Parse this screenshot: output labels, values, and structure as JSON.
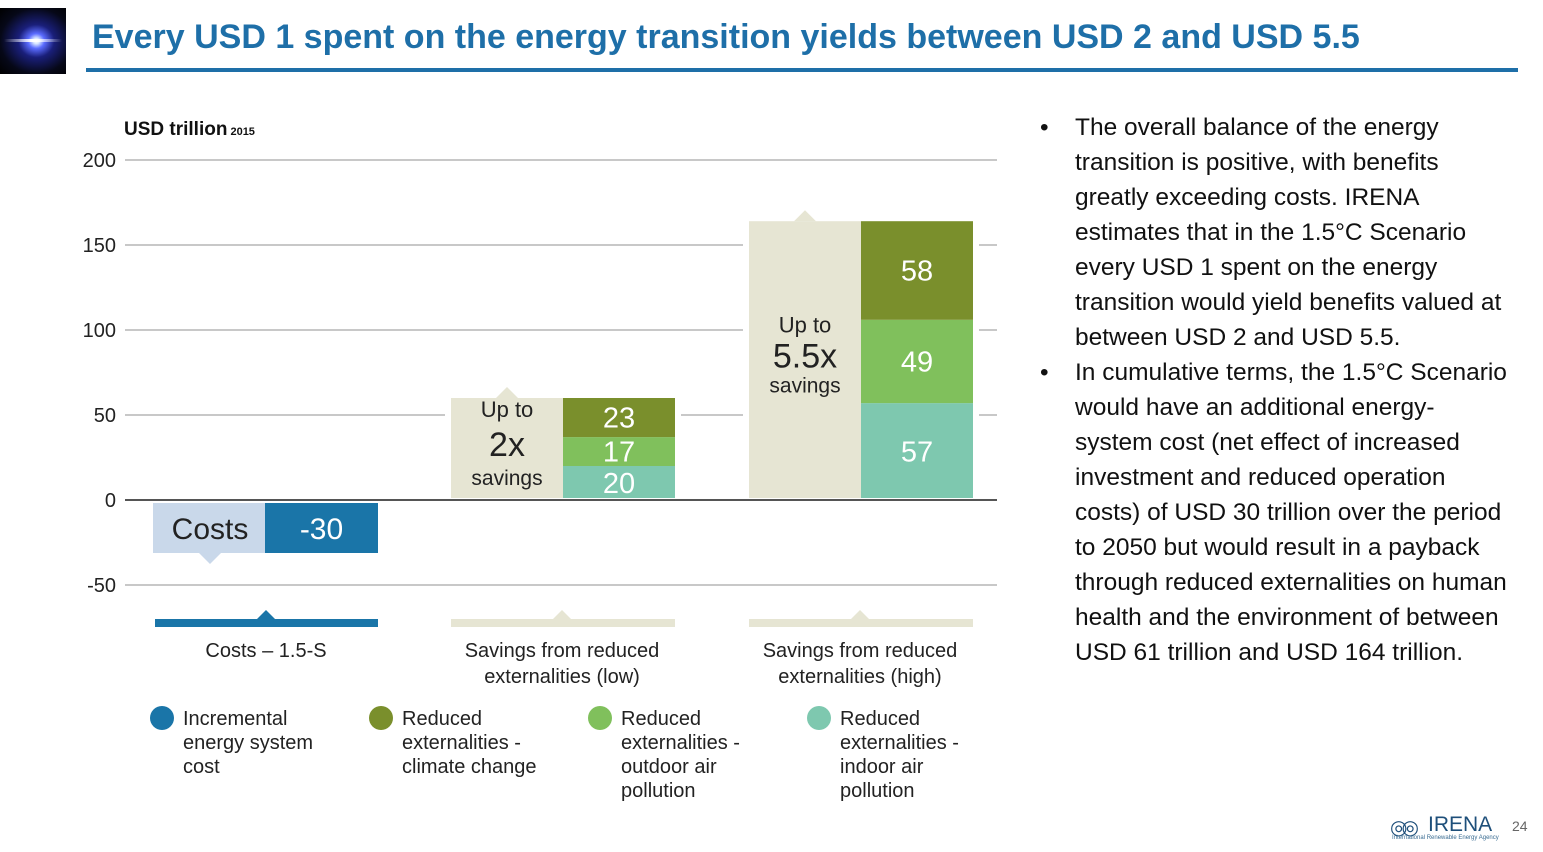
{
  "header": {
    "title": "Every USD 1 spent on the energy transition yields between USD 2 and USD 5.5"
  },
  "chart_data": {
    "type": "bar",
    "unit_label": "USD trillion",
    "unit_sub": "2015",
    "ylim": [
      -50,
      200
    ],
    "yticks": [
      200,
      150,
      100,
      50,
      0,
      -50
    ],
    "categories": [
      "Costs – 1.5-S",
      "Savings from reduced externalities (low)",
      "Savings from reduced externalities (high)"
    ],
    "category_lines": [
      [
        "Costs – 1.5-S"
      ],
      [
        "Savings from reduced",
        "externalities (low)"
      ],
      [
        "Savings from reduced",
        "externalities (high)"
      ]
    ],
    "series": [
      {
        "name": "Incremental energy system cost",
        "color": "#1a75a8",
        "text_color": "#ffffff",
        "values": [
          -30,
          null,
          null
        ]
      },
      {
        "name": "Reduced externalities - indoor air pollution",
        "color": "#7ec8af",
        "text_color": "#ffffff",
        "values": [
          null,
          20,
          57
        ]
      },
      {
        "name": "Reduced externalities - outdoor air pollution",
        "color": "#80c05c",
        "text_color": "#ffffff",
        "values": [
          null,
          17,
          49
        ]
      },
      {
        "name": "Reduced externalities - climate change",
        "color": "#7a8f2c",
        "text_color": "#ffffff",
        "values": [
          null,
          23,
          58
        ]
      }
    ],
    "callouts": [
      {
        "lines": [
          "Costs"
        ],
        "color": "#c9d8ea"
      },
      {
        "lines": [
          "Up to",
          "2x",
          "savings"
        ],
        "color": "#e6e5d3"
      },
      {
        "lines": [
          "Up to",
          "5.5x",
          "savings"
        ],
        "color": "#e6e5d3"
      }
    ],
    "legend": [
      {
        "lines": [
          "Incremental",
          "energy system",
          "cost"
        ],
        "color": "#1a75a8"
      },
      {
        "lines": [
          "Reduced",
          "externalities -",
          "climate change"
        ],
        "color": "#7a8f2c"
      },
      {
        "lines": [
          "Reduced",
          "externalities -",
          "outdoor air",
          "pollution"
        ],
        "color": "#80c05c"
      },
      {
        "lines": [
          "Reduced",
          "externalities -",
          "indoor air",
          "pollution"
        ],
        "color": "#7ec8af"
      }
    ]
  },
  "bullets": [
    "The overall balance of the energy transition is positive, with benefits greatly exceeding costs. IRENA estimates that in the 1.5°C Scenario every USD 1 spent on the energy transition would yield benefits valued at between USD 2 and USD 5.5.",
    "In cumulative terms, the 1.5°C Scenario would have an additional energy-system cost (net effect of increased investment and reduced operation costs) of USD 30 trillion over the period to 2050 but would result in a payback through reduced externalities on human health and the environment of between USD 61 trillion and USD 164 trillion."
  ],
  "footer": {
    "logo_word": "IRENA",
    "logo_tagline": "International Renewable Energy Agency",
    "page_number": "24"
  }
}
